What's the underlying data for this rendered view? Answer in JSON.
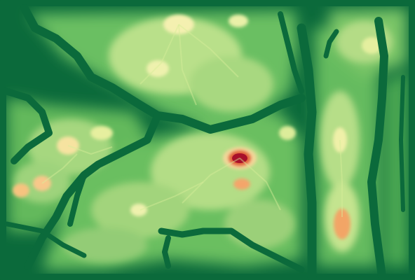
{
  "map": {
    "kind": "elevation-heatmap",
    "colormap": "RdYlGn_r",
    "palette": {
      "lowest": "#0b6a3b",
      "low": "#2e9a4e",
      "mid_low": "#7fc66a",
      "mid": "#c9e68f",
      "high": "#f4f0b0",
      "higher": "#f7b36a",
      "peak": "#e0603a",
      "max": "#a8102a"
    },
    "legend": null,
    "labels": []
  }
}
